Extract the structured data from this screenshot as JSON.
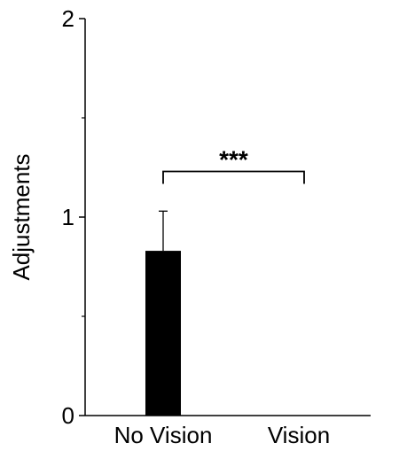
{
  "chart_data": {
    "type": "bar",
    "title": "",
    "xlabel": "",
    "ylabel": "Adjustments",
    "ylim": [
      0,
      2
    ],
    "major_ticks": [
      0,
      1,
      2
    ],
    "minor_ticks": [
      0.5,
      1.5
    ],
    "categories": [
      "No Vision",
      "Vision"
    ],
    "values": [
      0.83,
      0.0
    ],
    "error_upper": [
      1.03,
      0.0
    ],
    "bar_color": "#000000",
    "grid": false,
    "legend": "none",
    "annotations": [
      {
        "text": "***",
        "from": "No Vision",
        "to": "Vision",
        "y": 1.23
      }
    ]
  }
}
